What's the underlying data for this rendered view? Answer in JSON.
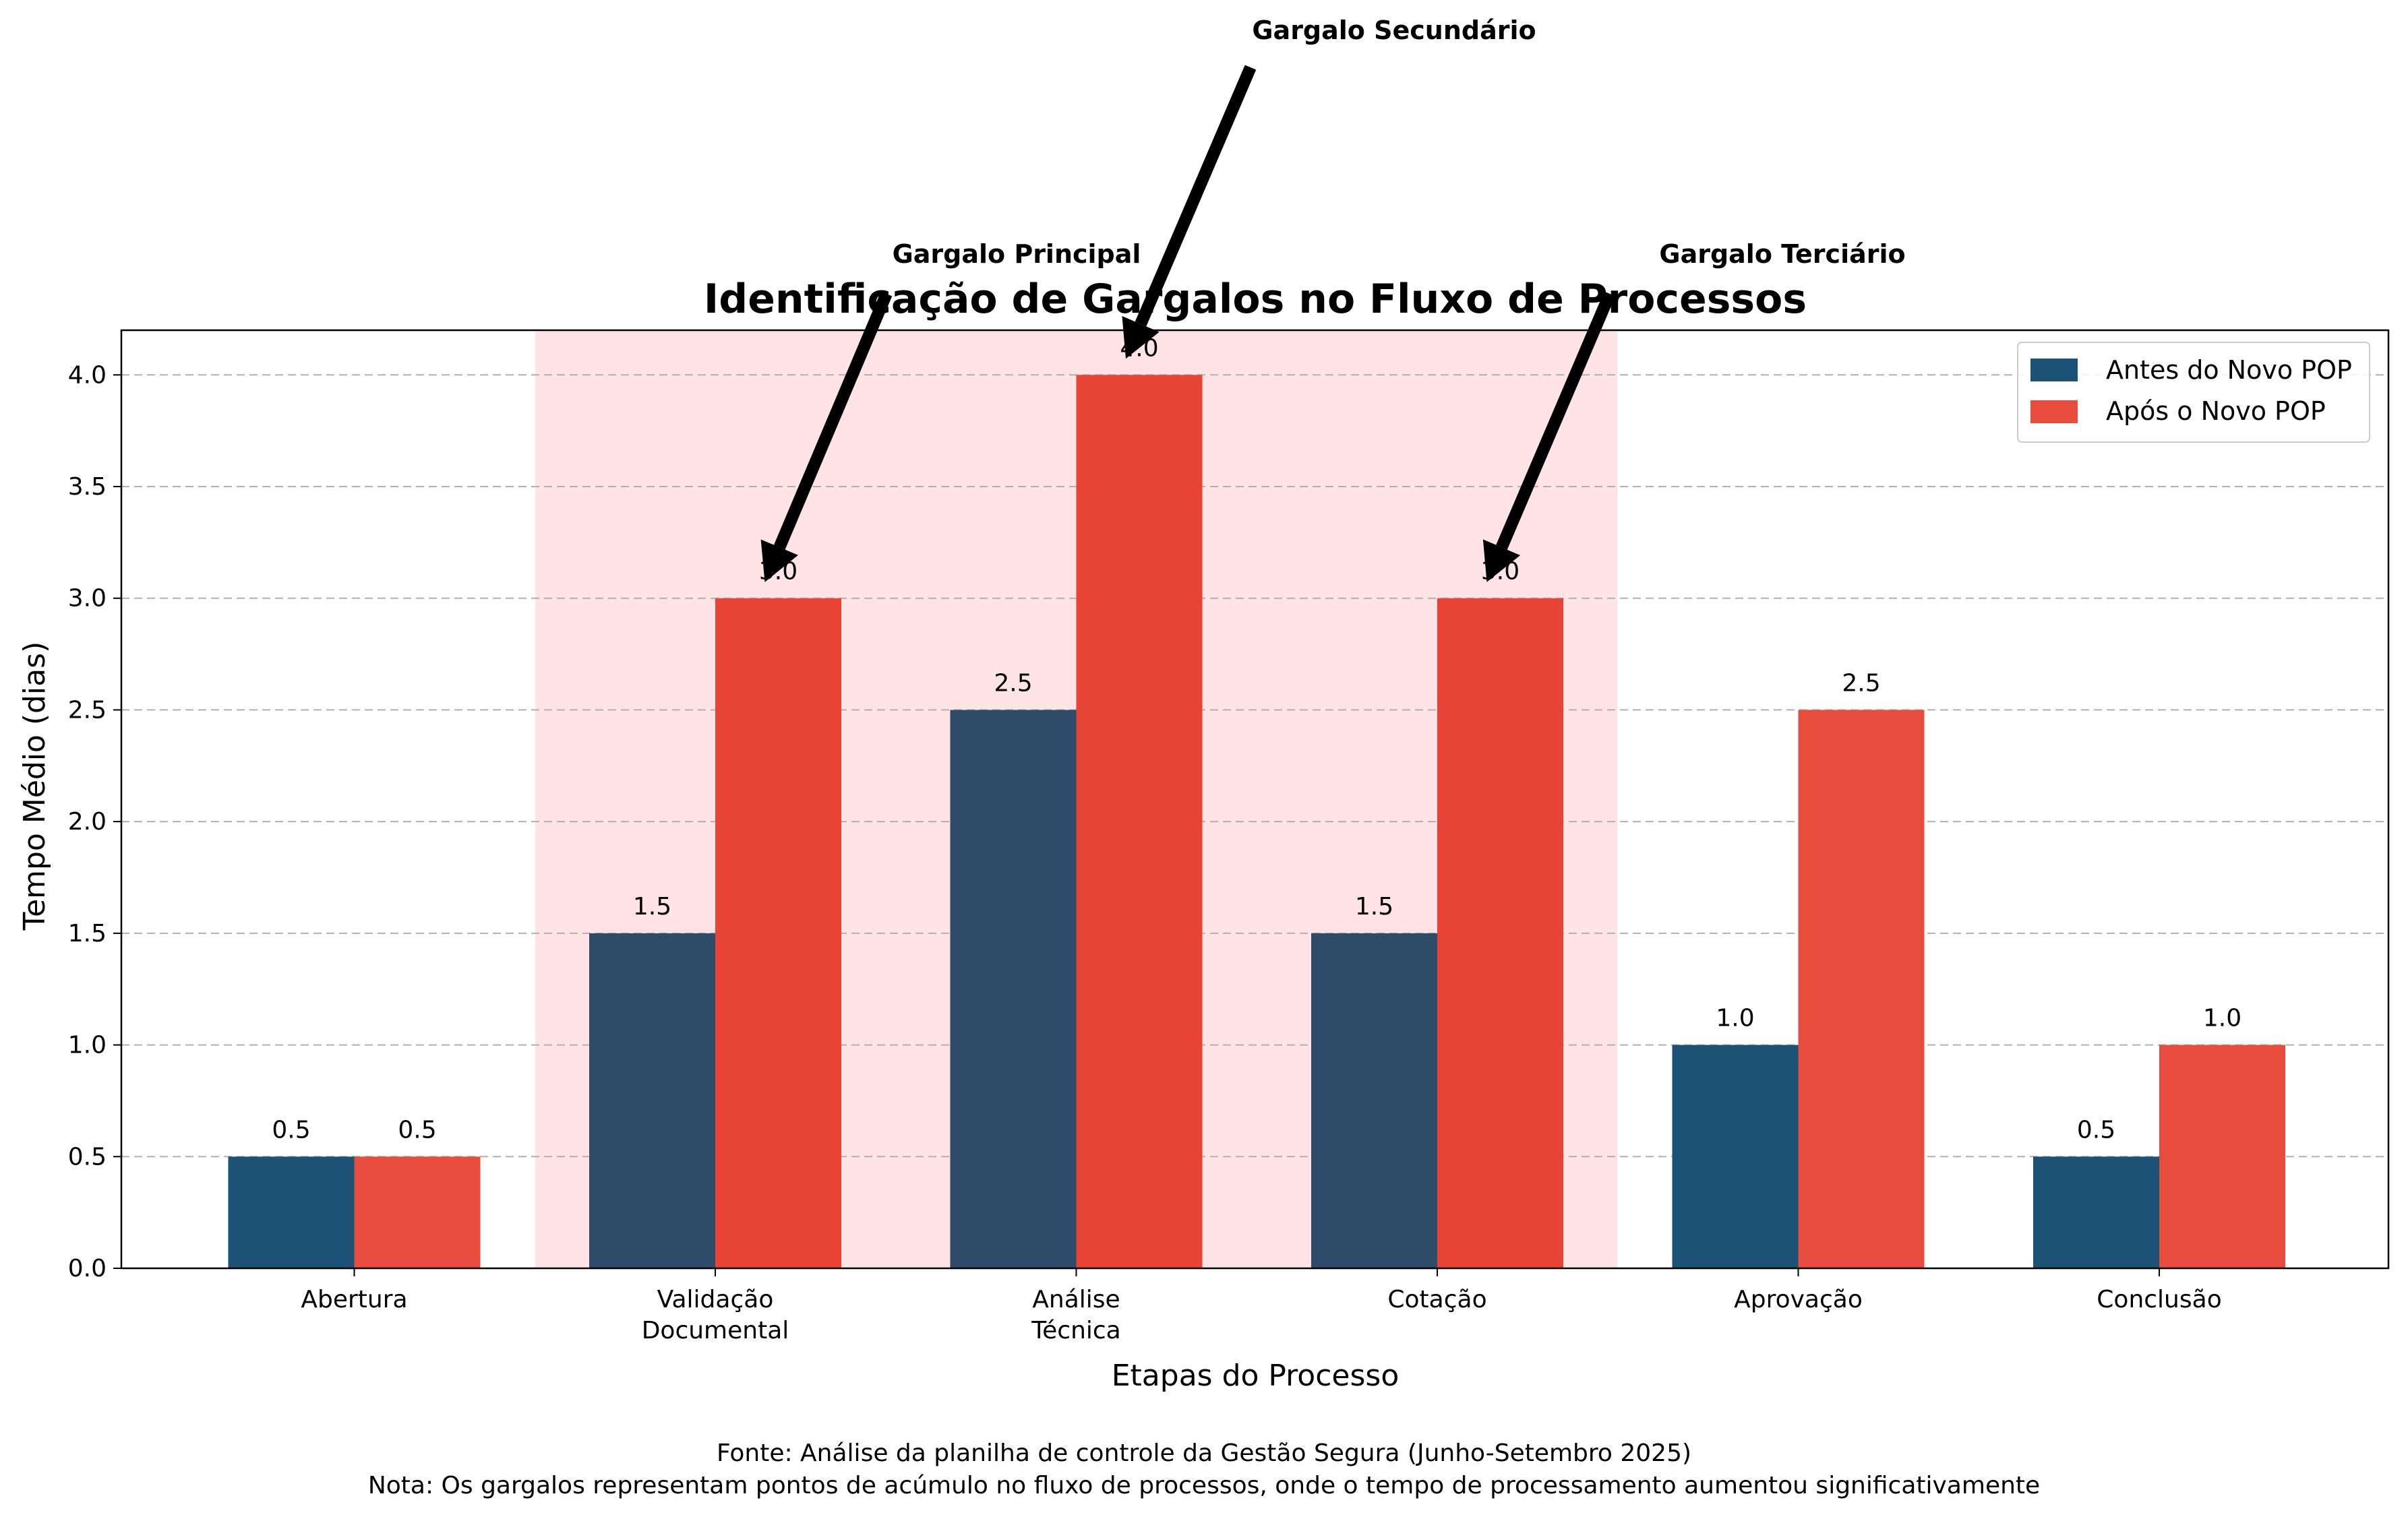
{
  "chart_data": {
    "type": "bar",
    "title": "Identificação de Gargalos no Fluxo de Processos",
    "xlabel": "Etapas do Processo",
    "ylabel": "Tempo Médio (dias)",
    "ylim": [
      0,
      4.2
    ],
    "yticks": [
      "0.0",
      "0.5",
      "1.0",
      "1.5",
      "2.0",
      "2.5",
      "3.0",
      "3.5",
      "4.0"
    ],
    "grid": "horizontal dashed",
    "legend_position": "top-right",
    "categories": [
      [
        "Abertura"
      ],
      [
        "Validação",
        "Documental"
      ],
      [
        "Análise",
        "Técnica"
      ],
      [
        "Cotação"
      ],
      [
        "Aprovação"
      ],
      [
        "Conclusão"
      ]
    ],
    "series": [
      {
        "name": "Antes do Novo POP",
        "color": "#1b5276",
        "values": [
          0.5,
          1.5,
          2.5,
          1.5,
          1.0,
          0.5
        ],
        "labels": [
          "0.5",
          "1.5",
          "2.5",
          "1.5",
          "1.0",
          "0.5"
        ]
      },
      {
        "name": "Após o Novo POP",
        "color": "#e74c3c",
        "values": [
          0.5,
          3.0,
          4.0,
          3.0,
          2.5,
          1.0
        ],
        "labels": [
          "0.5",
          "3.0",
          "4.0",
          "3.0",
          "2.5",
          "1.0"
        ]
      }
    ],
    "highlight_region": {
      "from_category": 1,
      "to_category": 3,
      "color": "#ffcccf"
    },
    "annotations": [
      {
        "text": "Gargalo Principal",
        "category": 1
      },
      {
        "text": "Gargalo Secundário",
        "category": 2
      },
      {
        "text": "Gargalo Terciário",
        "category": 3
      }
    ],
    "footnotes": [
      "Fonte: Análise da planilha de controle da Gestão Segura (Junho-Setembro 2025)",
      "Nota: Os gargalos representam pontos de acúmulo no fluxo de processos, onde o tempo de processamento aumentou significativamente"
    ]
  }
}
